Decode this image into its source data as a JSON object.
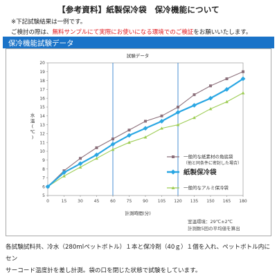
{
  "header": {
    "title": "【参考資料】紙製保冷袋　保冷機能について",
    "note_1": "※下記試験結果は一例です。",
    "note_2_before": "ご検討の際は、",
    "note_2_red": "無料サンプルにて実際にお使いになる環境でのご検証",
    "note_2_after": "をお願いいたします。"
  },
  "section": {
    "title": "保冷機能試験データ"
  },
  "colors": {
    "section_bar": "#1a73c8",
    "series_brown": "#8b6f7a",
    "series_blue": "#29a6e3",
    "series_green": "#9ccc52",
    "red_text": "#e0161b"
  },
  "chart_data": {
    "type": "line",
    "title": "試験データ",
    "xlabel": "計測時間(分)",
    "ylabel": "水温(℃)",
    "x": [
      0,
      15,
      30,
      45,
      60,
      75,
      90,
      105,
      120,
      135,
      150,
      165,
      180
    ],
    "xlim": [
      0,
      180
    ],
    "ylim": [
      5,
      20
    ],
    "yticks": [
      5,
      6,
      7,
      8,
      9,
      10,
      11,
      12,
      13,
      14,
      15,
      16,
      17,
      18,
      19,
      20
    ],
    "reference_lines_x": [
      60,
      120
    ],
    "grid": false,
    "series": [
      {
        "name": "一般的な紙素材の角底袋",
        "name_sub": "（他と同条件に密封した場合）",
        "color": "#8b6f7a",
        "marker": "square",
        "values": [
          6.0,
          7.8,
          9.2,
          10.4,
          11.4,
          12.4,
          13.4,
          14.0,
          15.0,
          16.4,
          17.4,
          18.2,
          19.0
        ]
      },
      {
        "name": "紙製保冷袋",
        "color": "#29a6e3",
        "marker": "diamond",
        "values": [
          6.0,
          7.6,
          8.6,
          9.6,
          10.8,
          11.8,
          12.6,
          13.4,
          14.4,
          15.2,
          16.0,
          17.0,
          18.2
        ]
      },
      {
        "name": "一般的なアルミ保冷袋",
        "color": "#9ccc52",
        "marker": "triangle",
        "values": [
          6.0,
          7.2,
          8.2,
          9.2,
          10.2,
          11.0,
          11.6,
          12.6,
          13.0,
          13.8,
          14.8,
          15.6,
          16.6
        ]
      }
    ],
    "conditions": [
      "室温環境：29℃±2℃",
      "計測数5回の平均値を算出"
    ]
  },
  "footer": {
    "line_1": "各試験試料共、冷水（280mlペットボトル）１本と保冷剤（40ｇ）１個を入れ、ペットボトル内にセン",
    "line_2": "サーコード温度計を差し計測。袋の口を閉じた状態で試験をしています。"
  }
}
